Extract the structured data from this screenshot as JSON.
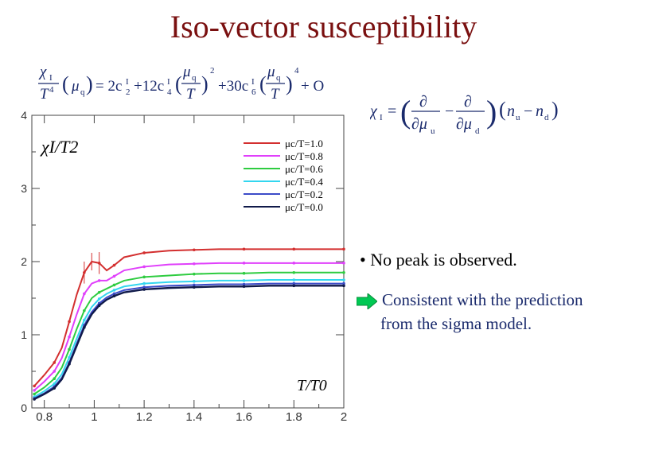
{
  "slide": {
    "title": "Iso-vector susceptibility",
    "bullet": "No peak is observed.",
    "consistent_line1": "Consistent with the prediction",
    "consistent_line2": "from the sigma model.",
    "formula_left_text": "χ1/T^4 (μq) = 2c2^I + 12c4^I (μq/T)^2 + 30c6^I (μq/T)^4 + O(μq^6)",
    "formula_right_text": "χI = (∂/∂μu − ∂/∂μd)(nu − nd)"
  },
  "colors": {
    "title": "#7a1010",
    "text_blue": "#1a2a6c",
    "arrow": "#00c853"
  },
  "chart_data": {
    "type": "line",
    "ylabel": "χI/T2",
    "xlabel": "T/T0",
    "xlim": [
      0.75,
      2.0
    ],
    "ylim": [
      0,
      4
    ],
    "x_ticks": [
      "0.8",
      "1",
      "1.2",
      "1.4",
      "1.6",
      "1.8",
      "2"
    ],
    "y_ticks": [
      "0",
      "1",
      "2",
      "3",
      "4"
    ],
    "grid": false,
    "legend_position": "top-right",
    "legend_prefix": "μc/T=",
    "x": [
      0.76,
      0.8,
      0.84,
      0.87,
      0.9,
      0.93,
      0.96,
      0.99,
      1.02,
      1.05,
      1.08,
      1.12,
      1.2,
      1.3,
      1.4,
      1.5,
      1.6,
      1.7,
      1.8,
      1.9,
      2.0
    ],
    "series": [
      {
        "name": "1.0",
        "color": "#d32f2f",
        "values": [
          0.3,
          0.45,
          0.62,
          0.82,
          1.18,
          1.55,
          1.85,
          2.0,
          1.98,
          1.88,
          1.95,
          2.06,
          2.12,
          2.15,
          2.16,
          2.17,
          2.17,
          2.17,
          2.17,
          2.17,
          2.17
        ]
      },
      {
        "name": "0.8",
        "color": "#e040fb",
        "values": [
          0.24,
          0.36,
          0.5,
          0.68,
          0.97,
          1.28,
          1.56,
          1.7,
          1.74,
          1.74,
          1.8,
          1.88,
          1.93,
          1.96,
          1.97,
          1.98,
          1.98,
          1.98,
          1.98,
          1.98,
          1.98
        ]
      },
      {
        "name": "0.6",
        "color": "#2ecc40",
        "values": [
          0.19,
          0.28,
          0.4,
          0.55,
          0.8,
          1.08,
          1.33,
          1.5,
          1.58,
          1.63,
          1.68,
          1.74,
          1.79,
          1.81,
          1.83,
          1.84,
          1.84,
          1.85,
          1.85,
          1.85,
          1.85
        ]
      },
      {
        "name": "0.4",
        "color": "#33d6ef",
        "values": [
          0.15,
          0.23,
          0.33,
          0.46,
          0.69,
          0.95,
          1.2,
          1.38,
          1.49,
          1.56,
          1.61,
          1.66,
          1.7,
          1.72,
          1.73,
          1.74,
          1.74,
          1.75,
          1.75,
          1.75,
          1.75
        ]
      },
      {
        "name": "0.2",
        "color": "#3b4bc8",
        "values": [
          0.13,
          0.2,
          0.29,
          0.41,
          0.62,
          0.88,
          1.13,
          1.31,
          1.43,
          1.51,
          1.56,
          1.61,
          1.65,
          1.67,
          1.68,
          1.69,
          1.69,
          1.7,
          1.7,
          1.7,
          1.7
        ]
      },
      {
        "name": "0.0",
        "color": "#101a4a",
        "values": [
          0.12,
          0.19,
          0.27,
          0.39,
          0.6,
          0.85,
          1.1,
          1.28,
          1.4,
          1.48,
          1.53,
          1.58,
          1.62,
          1.64,
          1.65,
          1.66,
          1.66,
          1.67,
          1.67,
          1.67,
          1.67
        ]
      }
    ]
  }
}
